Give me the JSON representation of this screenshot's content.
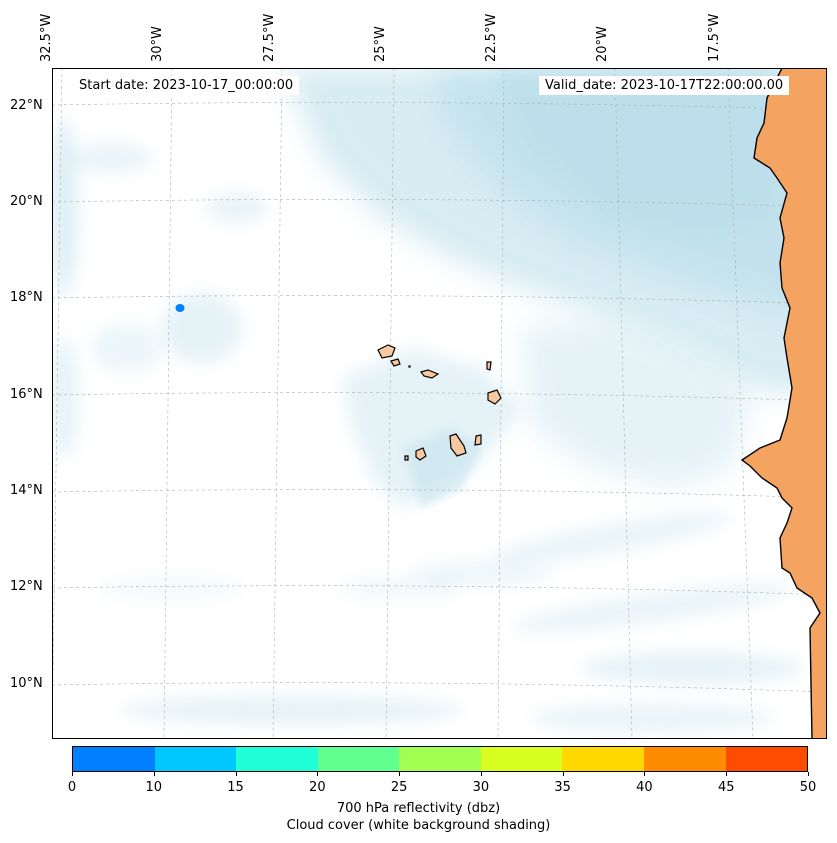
{
  "header": {
    "start_date": "Start date: 2023-10-17_00:00:00",
    "valid_date": "Valid_date: 2023-10-17T22:00:00.00"
  },
  "longitude_labels": [
    "32.5°W",
    "30°W",
    "27.5°W",
    "25°W",
    "22.5°W",
    "20°W",
    "17.5°W"
  ],
  "latitude_labels": [
    "22°N",
    "20°N",
    "18°N",
    "16°N",
    "14°N",
    "12°N",
    "10°N"
  ],
  "colorbar": {
    "ticks": [
      "0",
      "10",
      "15",
      "20",
      "25",
      "30",
      "35",
      "40",
      "45",
      "50"
    ],
    "colors": [
      "#0080ff",
      "#00c8ff",
      "#20ffd8",
      "#60ff90",
      "#a0ff50",
      "#d8ff20",
      "#ffd800",
      "#ff8c00",
      "#ff4c00"
    ],
    "label": "700 hPa reflectivity (dbz)",
    "sublabel": "Cloud cover (white background shading)"
  },
  "map": {
    "ocean_color": "#ffffff",
    "cloud_color": "#add8e6",
    "land_color": "#f4a460",
    "coastline_color": "#000000",
    "grid_color": "#b0b0b0",
    "reflectivity_spot_color": "#0080ff"
  }
}
